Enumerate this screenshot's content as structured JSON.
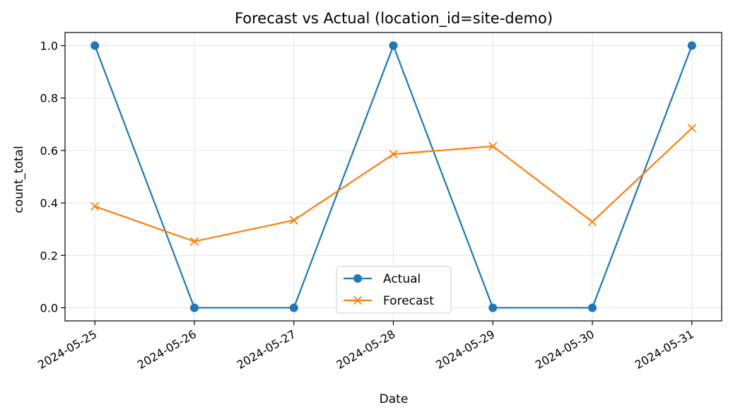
{
  "chart_data": {
    "type": "line",
    "title": "Forecast vs Actual (location_id=site-demo)",
    "xlabel": "Date",
    "ylabel": "count_total",
    "x": [
      "2024-05-25",
      "2024-05-26",
      "2024-05-27",
      "2024-05-28",
      "2024-05-29",
      "2024-05-30",
      "2024-05-31"
    ],
    "ylim": [
      -0.05,
      1.05
    ],
    "yticks": [
      "0.0",
      "0.2",
      "0.4",
      "0.6",
      "0.8",
      "1.0"
    ],
    "grid": true,
    "legend_position": "bottom-center",
    "series": [
      {
        "name": "Actual",
        "marker": "circle",
        "color": "#1f77b4",
        "values": [
          1,
          0,
          0,
          1,
          0,
          0,
          1
        ]
      },
      {
        "name": "Forecast",
        "marker": "x",
        "color": "#ff7f0e",
        "values": [
          0.387,
          0.253,
          0.334,
          0.586,
          0.616,
          0.328,
          0.685
        ]
      }
    ]
  }
}
